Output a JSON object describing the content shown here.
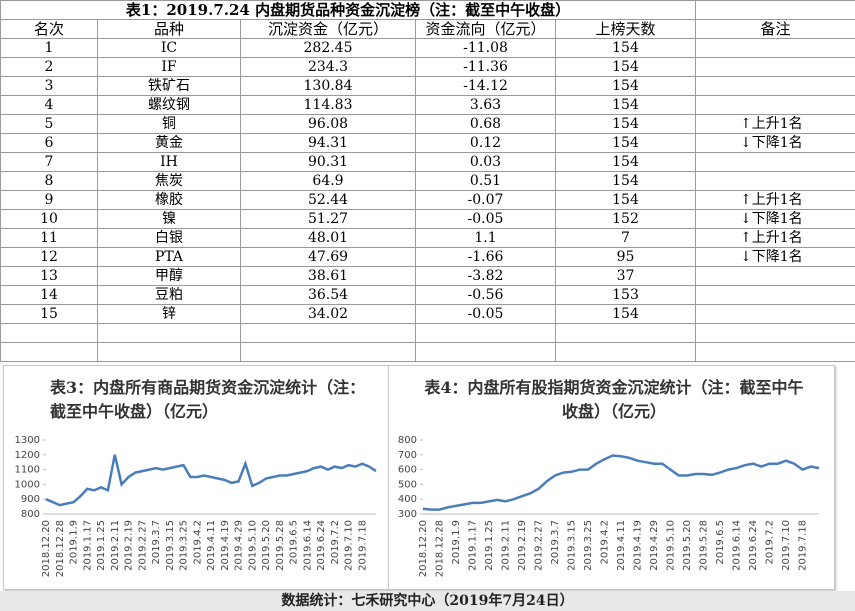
{
  "table": {
    "title": "表1：2019.7.24 内盘期货品种资金沉淀榜（注：截至中午收盘）",
    "headers": [
      "名次",
      "品种",
      "沉淀资金（亿元）",
      "资金流向（亿元）",
      "上榜天数",
      "备注"
    ],
    "rows": [
      [
        1,
        "IC",
        282.45,
        -11.08,
        154
      ],
      [
        2,
        "IF",
        234.3,
        -11.36,
        154
      ],
      [
        3,
        "铁矿石",
        130.84,
        -14.12,
        154
      ],
      [
        4,
        "螺纹钢",
        114.83,
        3.63,
        154
      ],
      [
        5,
        "铜",
        96.08,
        0.68,
        154,
        "↑上升1名"
      ],
      [
        6,
        "黄金",
        94.31,
        0.12,
        154,
        "↓下降1名"
      ],
      [
        7,
        "IH",
        90.31,
        0.03,
        154
      ],
      [
        8,
        "焦炭",
        64.9,
        0.51,
        154
      ],
      [
        9,
        "橡胶",
        52.44,
        -0.07,
        154,
        "↑上升1名"
      ],
      [
        10,
        "镍",
        51.27,
        -0.05,
        152,
        "↓下降1名"
      ],
      [
        11,
        "白银",
        48.01,
        1.1,
        7,
        "↑上升1名"
      ],
      [
        12,
        "PTA",
        47.69,
        -1.66,
        95,
        "↓下降1名"
      ],
      [
        13,
        "甲醇",
        38.61,
        -3.82,
        37
      ],
      [
        14,
        "豆粕",
        36.54,
        -0.56,
        153
      ],
      [
        15,
        "锌",
        34.02,
        -0.05,
        154
      ]
    ]
  },
  "chart_data": [
    {
      "type": "line",
      "title": "表3：内盘所有商品期货资金沉淀统计（注：截至中午收盘）（亿元）",
      "color": "#4a7ebb",
      "categories": [
        "2018.12.20",
        null,
        "2018.12.28",
        null,
        "2019.1.9",
        null,
        "2019.1.17",
        null,
        "2019.1.25",
        null,
        "2019.2.11",
        null,
        "2019.2.19",
        null,
        "2019.2.27",
        null,
        "2019.3.7",
        null,
        "2019.3.15",
        null,
        "2019.3.25",
        null,
        "2019.4.2",
        null,
        "2019.4.11",
        null,
        "2019.4.19",
        null,
        "2019.4.29",
        null,
        "2019.5.10",
        null,
        "2019.5.20",
        null,
        "2019.5.28",
        null,
        "2019.6.5",
        null,
        "2019.6.14",
        null,
        "2019.6.24",
        null,
        "2019.7.2",
        null,
        "2019.7.10",
        null,
        "2019.7.18",
        null,
        null
      ],
      "values": [
        900,
        880,
        860,
        870,
        880,
        920,
        970,
        960,
        980,
        960,
        1200,
        1000,
        1050,
        1080,
        1090,
        1100,
        1110,
        1100,
        1110,
        1120,
        1130,
        1050,
        1050,
        1060,
        1050,
        1040,
        1030,
        1010,
        1020,
        1140,
        990,
        1010,
        1040,
        1050,
        1060,
        1060,
        1070,
        1080,
        1090,
        1110,
        1120,
        1100,
        1120,
        1110,
        1130,
        1120,
        1140,
        1120,
        1090
      ],
      "ylim": [
        800,
        1300
      ],
      "yticks": [
        800,
        900,
        1000,
        1100,
        1200,
        1300
      ]
    },
    {
      "type": "line",
      "title": "表4：内盘所有股指期货资金沉淀统计（注：截至中午收盘）（亿元）",
      "color": "#4a7ebb",
      "categories": [
        "2018.12.20",
        null,
        "2018.12.28",
        null,
        "2019.1.9",
        null,
        "2019.1.17",
        null,
        "2019.1.25",
        null,
        "2019.2.11",
        null,
        "2019.2.19",
        null,
        "2019.2.27",
        null,
        "2019.3.7",
        null,
        "2019.3.15",
        null,
        "2019.3.25",
        null,
        "2019.4.2",
        null,
        "2019.4.11",
        null,
        "2019.4.19",
        null,
        "2019.4.29",
        null,
        "2019.5.10",
        null,
        "2019.5.20",
        null,
        "2019.5.28",
        null,
        "2019.6.5",
        null,
        "2019.6.14",
        null,
        "2019.6.24",
        null,
        "2019.7.2",
        null,
        "2019.7.10",
        null,
        "2019.7.18",
        null,
        null
      ],
      "values": [
        335,
        330,
        330,
        345,
        355,
        365,
        375,
        375,
        385,
        395,
        385,
        400,
        420,
        440,
        470,
        520,
        560,
        580,
        585,
        600,
        600,
        640,
        670,
        695,
        690,
        680,
        660,
        650,
        640,
        640,
        600,
        560,
        560,
        570,
        570,
        565,
        580,
        600,
        610,
        630,
        640,
        620,
        640,
        640,
        660,
        640,
        600,
        620,
        610
      ],
      "ylim": [
        300,
        800
      ],
      "yticks": [
        300,
        400,
        500,
        600,
        700,
        800
      ]
    }
  ],
  "footer": "数据统计：七禾研究中心（2019年7月24日）"
}
